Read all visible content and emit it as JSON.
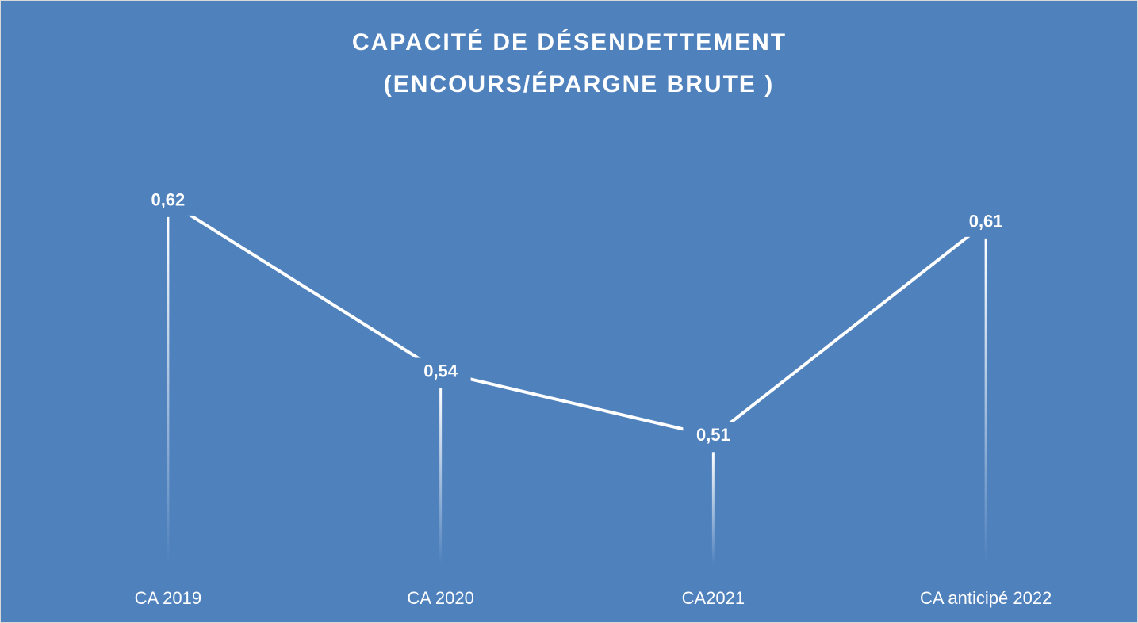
{
  "chart_data": {
    "type": "line",
    "title": [
      "CAPACITÉ DE DÉSENDETTEMENT",
      "(ENCOURS/ÉPARGNE BRUTE )"
    ],
    "categories": [
      "CA 2019",
      "CA 2020",
      "CA2021",
      "CA anticipé 2022"
    ],
    "values": [
      0.62,
      0.54,
      0.51,
      0.61
    ],
    "value_labels": [
      "0,62",
      "0,54",
      "0,51",
      "0,61"
    ],
    "color": "#ffffff",
    "ylim": [
      0.45,
      0.64
    ]
  }
}
